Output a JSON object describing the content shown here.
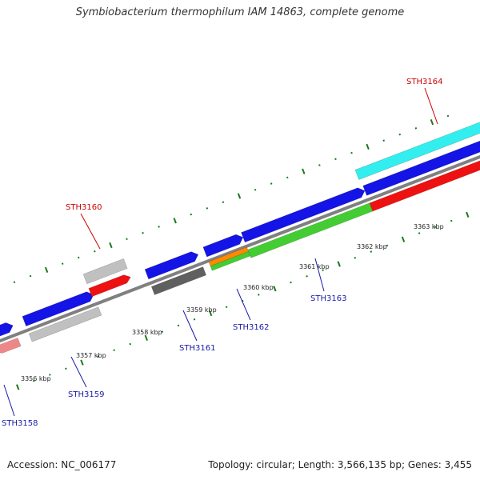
{
  "title": "Symbiobacterium thermophilum IAM 14863, complete genome",
  "footer": {
    "accession": "Accession: NC_006177",
    "summary": "Topology: circular; Length: 3,566,135 bp; Genes: 3,455"
  },
  "colors": {
    "backbone": "#808080",
    "ticks": "#1a7a1a",
    "label_red": "#cc0000",
    "label_blue": "#1a1aaa",
    "blue": "#1414e6",
    "red": "#ee1111",
    "cyan": "#33eeee",
    "gray_light": "#c0c0c0",
    "gray_dark": "#606060",
    "green": "#44cc33",
    "orange": "#ff8800",
    "pink": "#ee8888"
  },
  "kbp_labels": [
    {
      "text": "3356 kbp"
    },
    {
      "text": "3357 kbp"
    },
    {
      "text": "3358 kbp"
    },
    {
      "text": "3359 kbp"
    },
    {
      "text": "3360 kbp"
    },
    {
      "text": "3361 kbp"
    },
    {
      "text": "3362 kbp"
    },
    {
      "text": "3363 kbp"
    }
  ],
  "gene_labels": [
    {
      "text": "STH3158",
      "color": "blue"
    },
    {
      "text": "STH3159",
      "color": "blue"
    },
    {
      "text": "STH3160",
      "color": "red"
    },
    {
      "text": "STH3161",
      "color": "blue"
    },
    {
      "text": "STH3162",
      "color": "blue"
    },
    {
      "text": "STH3163",
      "color": "blue"
    },
    {
      "text": "STH3164",
      "color": "red"
    }
  ]
}
